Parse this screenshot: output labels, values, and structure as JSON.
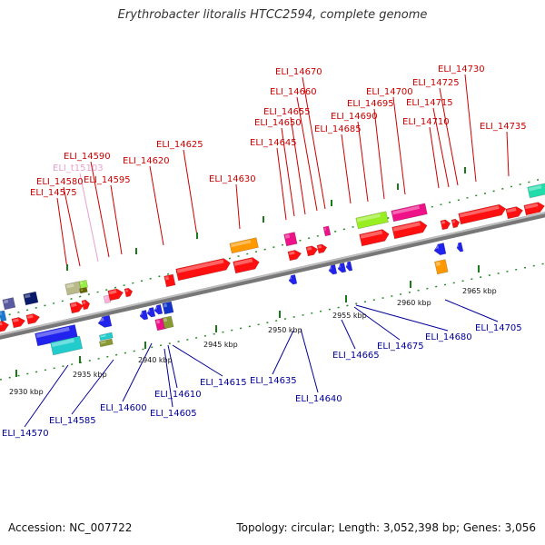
{
  "title": "Erythrobacter litoralis HTCC2594, complete genome",
  "footer": {
    "accession": "Accession: NC_007722",
    "summary": "Topology: circular; Length: 3,052,398 bp; Genes: 3,056"
  },
  "ticks": [
    "2930 kbp",
    "2935 kbp",
    "2940 kbp",
    "2945 kbp",
    "2950 kbp",
    "2955 kbp",
    "2960 kbp",
    "2965 kbp"
  ],
  "forward_labels": [
    "ELI_14575",
    "ELI_14580",
    "ELI_t15103",
    "ELI_14590",
    "ELI_14595",
    "ELI_14620",
    "ELI_14625",
    "ELI_14630",
    "ELI_14645",
    "ELI_14650",
    "ELI_14655",
    "ELI_14660",
    "ELI_14670",
    "ELI_14685",
    "ELI_14690",
    "ELI_14695",
    "ELI_14700",
    "ELI_14710",
    "ELI_14715",
    "ELI_14725",
    "ELI_14730",
    "ELI_14735"
  ],
  "reverse_labels": [
    "ELI_14570",
    "ELI_14585",
    "ELI_14600",
    "ELI_14605",
    "ELI_14610",
    "ELI_14615",
    "ELI_14635",
    "ELI_14640",
    "ELI_14665",
    "ELI_14675",
    "ELI_14680",
    "ELI_14705"
  ],
  "colors": {
    "forward_label": "#cc0000",
    "reverse_label": "#000099",
    "trna_label": "#e9a0d0",
    "backbone": "#888888"
  }
}
